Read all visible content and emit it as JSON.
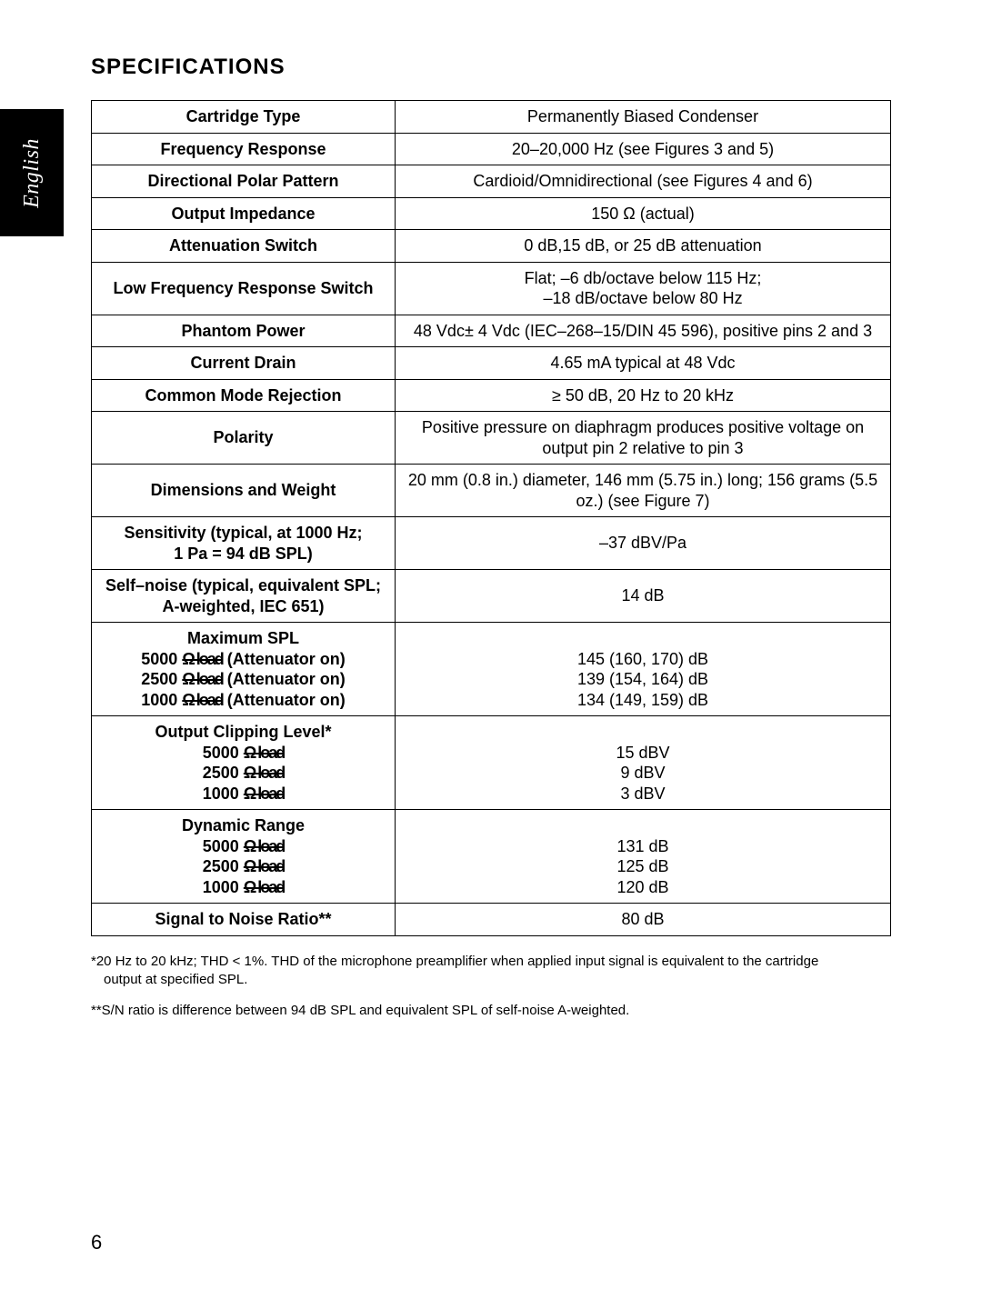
{
  "sideTab": "English",
  "title": "SPECIFICATIONS",
  "pageNumber": "6",
  "rows": [
    {
      "key": "Cartridge Type",
      "val": "Permanently Biased Condenser"
    },
    {
      "key": "Frequency Response",
      "val": "20–20,000 Hz (see Figures 3 and 5)"
    },
    {
      "key": "Directional Polar Pattern",
      "val": "Cardioid/Omnidirectional (see Figures 4 and 6)"
    },
    {
      "key": "Output Impedance",
      "val": "150 Ω (actual)"
    },
    {
      "key": "Attenuation Switch",
      "val": "0 dB,15 dB, or 25 dB attenuation"
    },
    {
      "key": "Low Frequency Response Switch",
      "val": "Flat; –6 db/octave below 115 Hz;\n–18 dB/octave below 80 Hz"
    },
    {
      "key": "Phantom Power",
      "val": "48 Vdc± 4 Vdc (IEC–268–15/DIN 45 596), positive pins 2 and 3"
    },
    {
      "key": "Current Drain",
      "val": "4.65 mA typical at 48 Vdc"
    },
    {
      "key": "Common Mode Rejection",
      "val": "≥ 50 dB, 20 Hz to 20 kHz"
    },
    {
      "key": "Polarity",
      "val": "Positive pressure on diaphragm produces positive voltage on output pin 2 relative to pin 3"
    },
    {
      "key": "Dimensions and Weight",
      "val": "20 mm (0.8 in.) diameter, 146 mm (5.75 in.) long; 156 grams (5.5 oz.) (see Figure 7)"
    },
    {
      "key": "Sensitivity (typical, at 1000 Hz;\n1 Pa = 94 dB SPL)",
      "val": "–37 dBV/Pa"
    },
    {
      "key": "Self–noise (typical, equivalent SPL;\nA-weighted, IEC 651)",
      "val": "14 dB"
    },
    {
      "key": "Maximum SPL\n5000 Ω load (Attenuator on)\n2500 Ω load (Attenuator on)\n1000 Ω load (Attenuator on)",
      "val": "\n145 (160, 170) dB\n139 (154, 164) dB\n134 (149, 159) dB"
    },
    {
      "key": "Output Clipping Level*\n5000 Ω load\n2500 Ω load\n1000 Ω load",
      "val": "\n15 dBV\n9 dBV\n3 dBV"
    },
    {
      "key": "Dynamic Range\n5000 Ω load\n2500 Ω load\n1000 Ω load",
      "val": "\n131 dB\n125 dB\n120 dB"
    },
    {
      "key": "Signal to Noise Ratio**",
      "val": "80 dB"
    }
  ],
  "footnote1_lead": "*20 Hz to 20 kHz; THD < 1%.  THD of the microphone preamplifier when applied input signal is equivalent to the cartridge",
  "footnote1_cont": "output at specified SPL.",
  "footnote2": "**S/N ratio is difference between 94 dB SPL and equivalent SPL of self-noise A-weighted."
}
